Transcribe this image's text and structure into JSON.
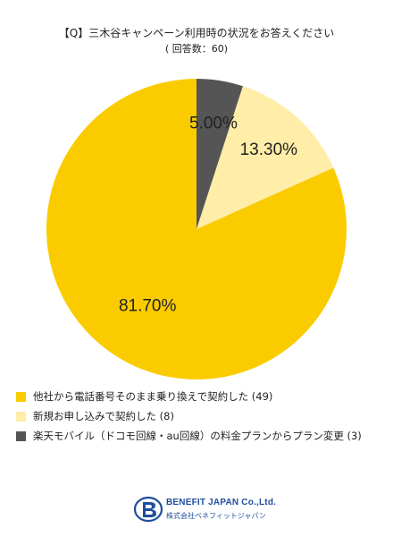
{
  "header": {
    "title": "【Q】三木谷キャンペーン利用時の状況をお答えください",
    "subtitle": "( 回答数：60)"
  },
  "chart_data": {
    "type": "pie",
    "title": "【Q】三木谷キャンペーン利用時の状況をお答えください",
    "subtitle": "( 回答数：60)",
    "slices": [
      {
        "label": "他社から電話番号そのまま乗り換えで契約した (49)",
        "value": 81.7,
        "display": "81.70%",
        "color": "#FACC00"
      },
      {
        "label": "新規お申し込みで契約した (8)",
        "value": 13.3,
        "display": "13.30%",
        "color": "#FFEDA8"
      },
      {
        "label": "楽天モバイル（ドコモ回線・au回線）の料金プランからプラン変更 (3)",
        "value": 5.0,
        "display": "5.00%",
        "color": "#555555"
      }
    ],
    "legend_position": "bottom"
  },
  "logo": {
    "name": "BENEFIT JAPAN Co.,Ltd.",
    "sub": "株式会社ベネフィットジャパン"
  }
}
